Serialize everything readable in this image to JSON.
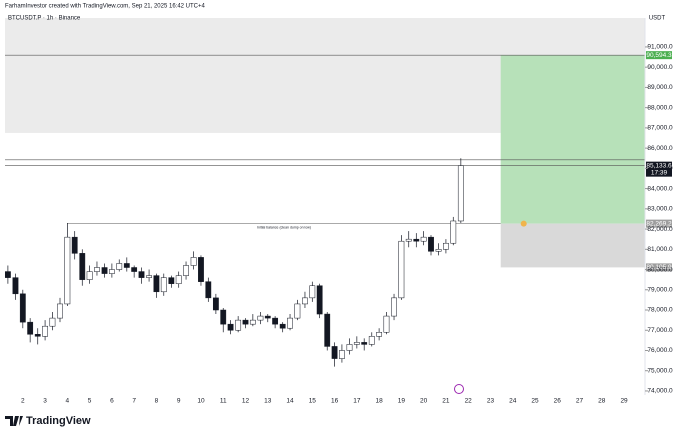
{
  "header": {
    "title": "FarhamInvestor created with TradingView.com, Sep 21, 2025 16:42 UTC+4"
  },
  "footer": {
    "brand": "TradingView"
  },
  "chart_data": {
    "type": "candlestick",
    "title": "BTCUSDT.P · 1h · Binance",
    "currency": "USDT",
    "up_color": "#ffffff",
    "down_color": "#131722",
    "wick_color": "#131722",
    "x": [
      1.33,
      1.67,
      2,
      2.33,
      2.67,
      3,
      3.33,
      3.67,
      4,
      4.33,
      4.67,
      5,
      5.33,
      5.67,
      6,
      6.33,
      6.67,
      7,
      7.33,
      7.67,
      8,
      8.33,
      8.67,
      9,
      9.33,
      9.67,
      10,
      10.33,
      10.67,
      11,
      11.33,
      11.67,
      12,
      12.33,
      12.67,
      13,
      13.33,
      13.67,
      14,
      14.33,
      14.67,
      15,
      15.33,
      15.67,
      16,
      16.33,
      16.67,
      17,
      17.33,
      17.67,
      18,
      18.33,
      18.67,
      19,
      19.33,
      19.67,
      20,
      20.33,
      20.67,
      21,
      21.33,
      21.67
    ],
    "open": [
      79900,
      79600,
      78800,
      77400,
      76800,
      76700,
      77200,
      77600,
      78300,
      81600,
      80800,
      79500,
      79900,
      80100,
      79800,
      80000,
      80300,
      80100,
      79900,
      79600,
      79700,
      78900,
      79600,
      79300,
      79700,
      80200,
      80600,
      79400,
      78600,
      78000,
      77300,
      77000,
      77500,
      77300,
      77500,
      77700,
      77600,
      77300,
      77100,
      77600,
      78300,
      78600,
      79200,
      77800,
      76200,
      75600,
      76000,
      76300,
      76400,
      76300,
      76700,
      76900,
      77700,
      78600,
      81400,
      81500,
      81400,
      81600,
      80900,
      81000,
      81300,
      82400
    ],
    "high": [
      80200,
      79800,
      79000,
      77600,
      77100,
      77500,
      77900,
      78600,
      82300,
      81900,
      81000,
      80200,
      80400,
      80300,
      80300,
      80500,
      80600,
      80200,
      80100,
      80000,
      79800,
      79800,
      79700,
      79900,
      80400,
      80900,
      80700,
      79600,
      78800,
      78100,
      77500,
      77700,
      77600,
      77800,
      77900,
      77800,
      77700,
      77400,
      77800,
      78500,
      78900,
      79400,
      79300,
      77900,
      76400,
      76300,
      76600,
      76700,
      76600,
      76900,
      77100,
      77900,
      78800,
      81700,
      81900,
      81800,
      81900,
      81700,
      81300,
      81500,
      82600,
      85500
    ],
    "low": [
      79300,
      78500,
      77100,
      76400,
      76300,
      76500,
      77000,
      77400,
      78200,
      80500,
      79200,
      79300,
      79700,
      79600,
      79600,
      79900,
      79900,
      79600,
      79300,
      79400,
      78600,
      78700,
      79100,
      79100,
      79500,
      80000,
      79200,
      78400,
      77800,
      76900,
      76800,
      76900,
      77100,
      77200,
      77300,
      77400,
      77100,
      76900,
      77000,
      77500,
      78100,
      78400,
      77600,
      76000,
      75200,
      75400,
      75800,
      76100,
      76000,
      76200,
      76500,
      76800,
      77500,
      78500,
      81100,
      81100,
      81200,
      80700,
      80700,
      80800,
      81200,
      82300
    ],
    "close": [
      79600,
      78800,
      77400,
      76800,
      76700,
      77200,
      77600,
      78300,
      81600,
      80800,
      79500,
      79900,
      80100,
      79800,
      80000,
      80300,
      80100,
      79900,
      79600,
      79700,
      78900,
      79600,
      79300,
      79700,
      80200,
      80600,
      79400,
      78600,
      78000,
      77300,
      77000,
      77500,
      77300,
      77500,
      77700,
      77600,
      77300,
      77100,
      77600,
      78300,
      78600,
      79200,
      77800,
      76200,
      75600,
      76000,
      76300,
      76400,
      76300,
      76700,
      76900,
      77700,
      78600,
      81400,
      81500,
      81400,
      81600,
      80900,
      81000,
      81300,
      82400,
      85133.6
    ],
    "xlim": [
      1.2,
      29.94
    ],
    "xticks": [
      2,
      3,
      4,
      5,
      6,
      7,
      8,
      9,
      10,
      11,
      12,
      13,
      14,
      15,
      16,
      17,
      18,
      19,
      20,
      21,
      22,
      23,
      24,
      25,
      26,
      27,
      28,
      29
    ],
    "ylim": [
      73800,
      92430
    ],
    "yticks": [
      {
        "value": 74000,
        "label": "74,000.0"
      },
      {
        "value": 75000,
        "label": "75,000.0"
      },
      {
        "value": 76000,
        "label": "76,000.0"
      },
      {
        "value": 77000,
        "label": "77,000.0"
      },
      {
        "value": 78000,
        "label": "78,000.0"
      },
      {
        "value": 79000,
        "label": "79,000.0"
      },
      {
        "value": 80000,
        "label": "80,000.0"
      },
      {
        "value": 81000,
        "label": "81,000.0"
      },
      {
        "value": 82000,
        "label": "82,000.0"
      },
      {
        "value": 83000,
        "label": "83,000.0"
      },
      {
        "value": 84000,
        "label": "84,000.0"
      },
      {
        "value": 85000,
        "label": "85,000.0"
      },
      {
        "value": 86000,
        "label": "86,000.0"
      },
      {
        "value": 87000,
        "label": "87,000.0"
      },
      {
        "value": 88000,
        "label": "88,000.0"
      },
      {
        "value": 89000,
        "label": "89,000.0"
      },
      {
        "value": 90000,
        "label": "90,000.0"
      },
      {
        "value": 91000,
        "label": "91,000.0"
      }
    ],
    "zone": {
      "low": 86750,
      "color": "#ebebeb"
    },
    "lines": [
      {
        "value": 90594.3
      },
      {
        "value": 85420
      },
      {
        "value": 85133.6
      },
      {
        "value": 82269.2,
        "x0": 4.0,
        "x1": 23.46,
        "label": "Initial balance (clean dump on low)"
      }
    ],
    "position": {
      "x0": 23.46,
      "entry": 82269.2,
      "target": 90594.3,
      "stop": 80105.9,
      "profit_color": "#b7e1b9",
      "loss_color": "#d9d9d9"
    },
    "price_badges": [
      {
        "value": 90594.3,
        "label": "90,594.3",
        "color": "#4caf50"
      },
      {
        "value": 85133.6,
        "label": "85,133.6",
        "countdown": "17:39",
        "color": "#131722"
      },
      {
        "value": 82269.2,
        "label": "82,269.2",
        "color": "#9e9e9e"
      },
      {
        "value": 80105.9,
        "label": "80,105.9",
        "color": "#9e9e9e"
      }
    ]
  }
}
